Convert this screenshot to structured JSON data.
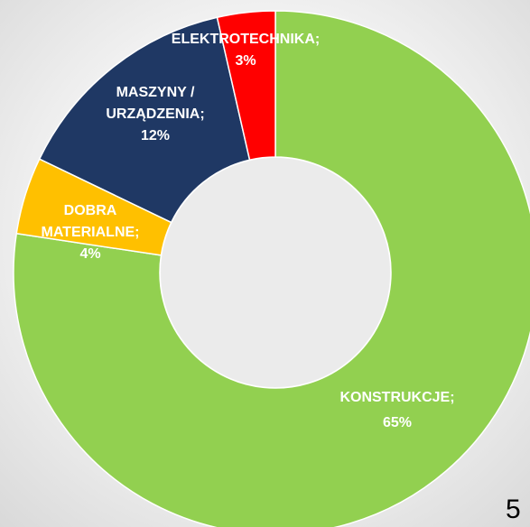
{
  "chart_data": {
    "type": "donut",
    "categories": [
      "KONSTRUKCJE;",
      "DOBRA MATERIALNE;",
      "MASZYNY / URZĄDZENIA;",
      "ELEKTROTECHNIKA;"
    ],
    "values": [
      65,
      4,
      12,
      3
    ],
    "value_labels": [
      "65%",
      "4%",
      "12%",
      "3%"
    ],
    "colors": [
      "#92d050",
      "#ffc000",
      "#1f3864",
      "#ff0000"
    ]
  },
  "page_number": "5"
}
